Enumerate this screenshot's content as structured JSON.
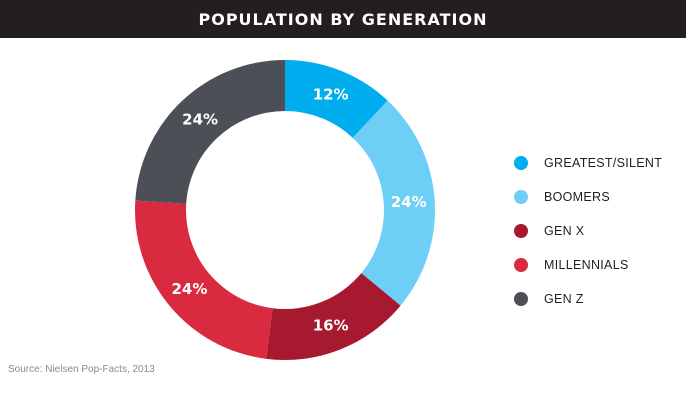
{
  "title": "POPULATION BY GENERATION",
  "source": "Source: Nielsen Pop-Facts, 2013",
  "chart_data": {
    "type": "pie",
    "title": "POPULATION BY GENERATION",
    "donut": true,
    "legend_position": "right",
    "categories": [
      "GREATEST/SILENT",
      "BOOMERS",
      "GEN X",
      "MILLENNIALS",
      "GEN Z"
    ],
    "values": [
      12,
      24,
      16,
      24,
      24
    ],
    "data_labels": [
      "12%",
      "24%",
      "16%",
      "24%",
      "24%"
    ],
    "colors": [
      "#00adef",
      "#6dcff6",
      "#a6192e",
      "#d92a3f",
      "#4d4f57"
    ]
  }
}
